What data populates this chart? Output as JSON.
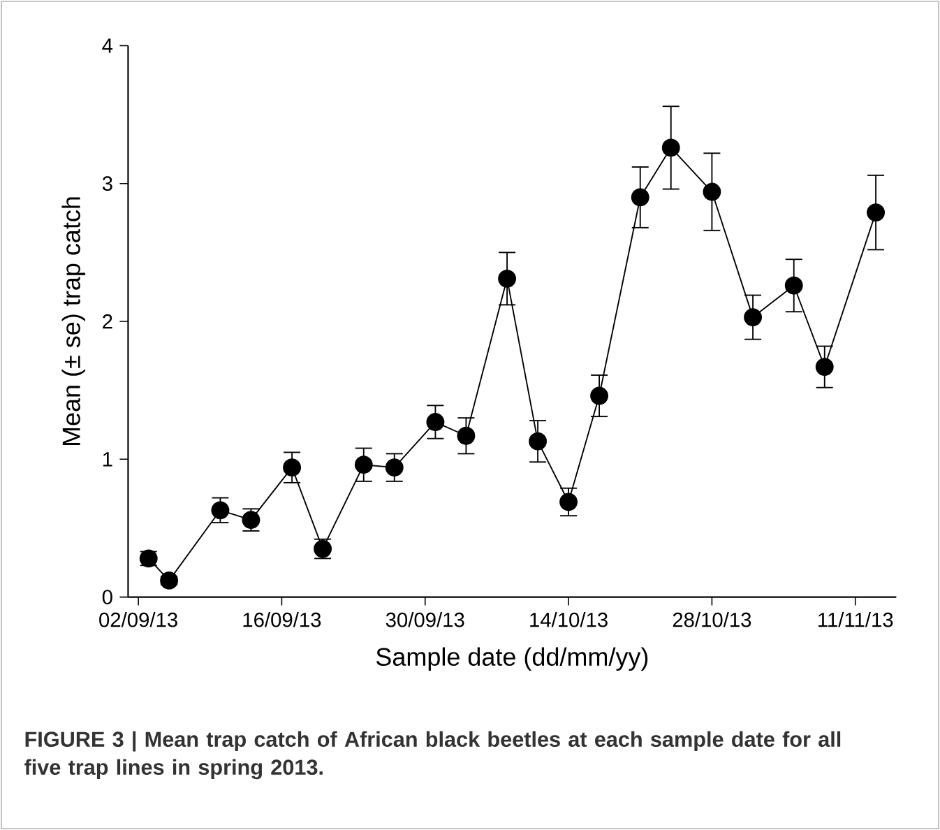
{
  "chart_data": {
    "type": "line",
    "xlabel": "Sample date (dd/mm/yy)",
    "ylabel": "Mean (± se) trap catch",
    "annotations": [
      "FIGURE 3 | Mean trap catch of African black beetles at each sample date for all five trap lines in spring 2013."
    ],
    "x": [
      "2013-09-03",
      "2013-09-05",
      "2013-09-10",
      "2013-09-13",
      "2013-09-17",
      "2013-09-20",
      "2013-09-24",
      "2013-09-27",
      "2013-10-01",
      "2013-10-04",
      "2013-10-08",
      "2013-10-11",
      "2013-10-14",
      "2013-10-17",
      "2013-10-21",
      "2013-10-24",
      "2013-10-28",
      "2013-11-01",
      "2013-11-05",
      "2013-11-08",
      "2013-11-13"
    ],
    "series": [
      {
        "color": "#000000",
        "values": [
          0.28,
          0.12,
          0.63,
          0.56,
          0.94,
          0.35,
          0.96,
          0.94,
          1.27,
          1.17,
          2.31,
          1.13,
          0.69,
          1.46,
          2.9,
          3.26,
          2.94,
          2.03,
          2.26,
          1.67,
          2.79
        ],
        "errors": [
          0.05,
          0.03,
          0.09,
          0.08,
          0.11,
          0.07,
          0.12,
          0.1,
          0.12,
          0.13,
          0.19,
          0.15,
          0.1,
          0.15,
          0.22,
          0.3,
          0.28,
          0.16,
          0.19,
          0.15,
          0.27
        ]
      }
    ],
    "xlim": [
      "2013-09-01",
      "2013-11-15"
    ],
    "xticks": [
      {
        "value": "2013-09-02",
        "label": "02/09/13"
      },
      {
        "value": "2013-09-16",
        "label": "16/09/13"
      },
      {
        "value": "2013-09-30",
        "label": "30/09/13"
      },
      {
        "value": "2013-10-14",
        "label": "14/10/13"
      },
      {
        "value": "2013-10-28",
        "label": "28/10/13"
      },
      {
        "value": "2013-11-11",
        "label": "11/11/13"
      }
    ],
    "ylim": [
      0,
      4
    ],
    "yticks": [
      0,
      1,
      2,
      3,
      4
    ],
    "marker": "circle",
    "line_style": "solid"
  }
}
